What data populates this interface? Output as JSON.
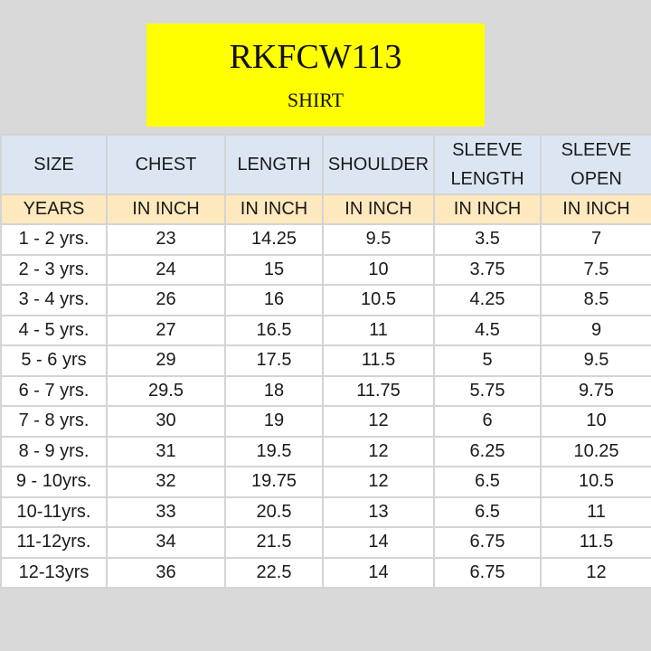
{
  "title": {
    "product_code": "RKFCW113",
    "product_type": "SHIRT"
  },
  "table": {
    "headers": [
      "SIZE",
      "CHEST",
      "LENGTH",
      "SHOULDER",
      "SLEEVE LENGTH",
      "SLEEVE OPEN"
    ],
    "units": [
      "YEARS",
      "IN INCH",
      "IN INCH",
      "IN INCH",
      "IN INCH",
      "IN INCH"
    ],
    "rows": [
      [
        "1 - 2 yrs.",
        "23",
        "14.25",
        "9.5",
        "3.5",
        "7"
      ],
      [
        "2 - 3 yrs.",
        "24",
        "15",
        "10",
        "3.75",
        "7.5"
      ],
      [
        "3 - 4 yrs.",
        "26",
        "16",
        "10.5",
        "4.25",
        "8.5"
      ],
      [
        "4 - 5 yrs.",
        "27",
        "16.5",
        "11",
        "4.5",
        "9"
      ],
      [
        "5 - 6 yrs",
        "29",
        "17.5",
        "11.5",
        "5",
        "9.5"
      ],
      [
        "6 - 7 yrs.",
        "29.5",
        "18",
        "11.75",
        "5.75",
        "9.75"
      ],
      [
        "7 - 8 yrs.",
        "30",
        "19",
        "12",
        "6",
        "10"
      ],
      [
        "8 - 9 yrs.",
        "31",
        "19.5",
        "12",
        "6.25",
        "10.25"
      ],
      [
        "9 - 10yrs.",
        "32",
        "19.75",
        "12",
        "6.5",
        "10.5"
      ],
      [
        "10-11yrs.",
        "33",
        "20.5",
        "13",
        "6.5",
        "11"
      ],
      [
        "11-12yrs.",
        "34",
        "21.5",
        "14",
        "6.75",
        "11.5"
      ],
      [
        "12-13yrs",
        "36",
        "22.5",
        "14",
        "6.75",
        "12"
      ]
    ]
  },
  "colors": {
    "title_background": "#ffff00",
    "header_background": "#dce6f2",
    "units_background": "#fde9bd",
    "page_background": "#d9d9d9"
  }
}
